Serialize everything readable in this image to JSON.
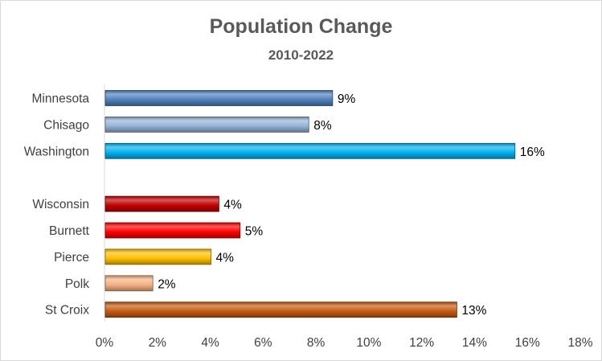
{
  "chart_data": {
    "type": "bar",
    "orientation": "horizontal",
    "title": "Population Change",
    "subtitle": "2010-2022",
    "categories": [
      "Minnesota",
      "Chisago",
      "Washington",
      "Wisconsin",
      "Burnett",
      "Pierce",
      "Polk",
      "St Croix"
    ],
    "groups": [
      [
        "Minnesota",
        "Chisago",
        "Washington"
      ],
      [
        "Wisconsin",
        "Burnett",
        "Pierce",
        "Polk",
        "St Croix"
      ]
    ],
    "values": [
      8.6,
      7.7,
      15.5,
      4.3,
      5.1,
      4.0,
      1.8,
      13.3
    ],
    "data_labels": [
      "9%",
      "8%",
      "16%",
      "4%",
      "5%",
      "4%",
      "2%",
      "13%"
    ],
    "colors": [
      "#4f81bd",
      "#95b3d7",
      "#00b0f0",
      "#c00000",
      "#ff0000",
      "#ffc000",
      "#f4b183",
      "#c55a11"
    ],
    "xlim": [
      0,
      18
    ],
    "xticks": [
      0,
      2,
      4,
      6,
      8,
      10,
      12,
      14,
      16,
      18
    ],
    "xtick_labels": [
      "0%",
      "2%",
      "4%",
      "6%",
      "8%",
      "10%",
      "12%",
      "14%",
      "16%",
      "18%"
    ],
    "xlabel": "",
    "ylabel": "",
    "grid": false,
    "legend": "none"
  }
}
